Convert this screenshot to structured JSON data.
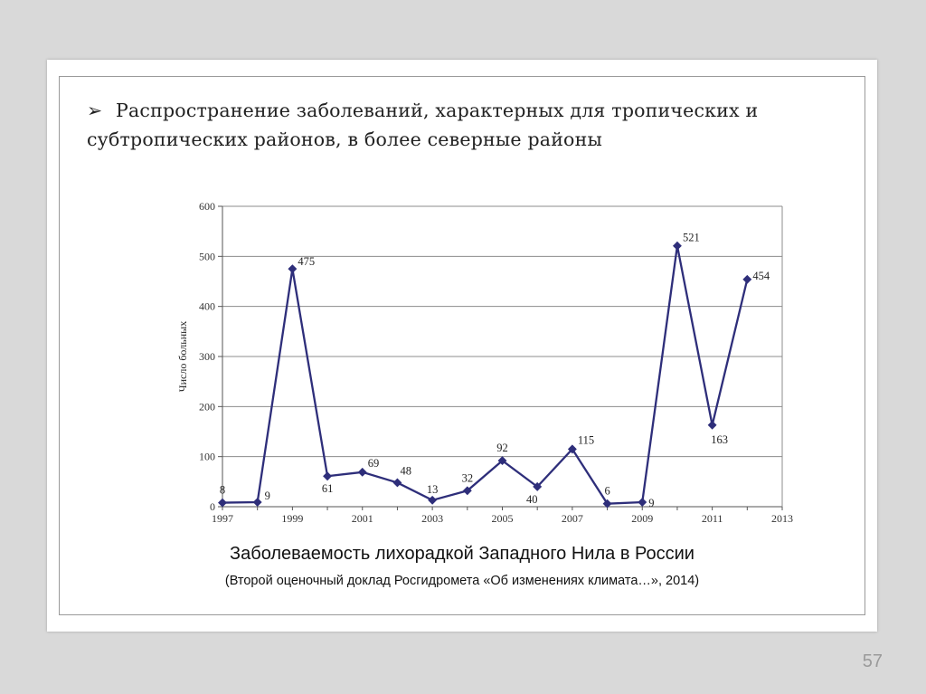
{
  "slide": {
    "bullet_marker": "➢",
    "bullet_text": "Распространение заболеваний, характерных для тропических и субтропических районов, в более северные районы",
    "caption_title": "Заболеваемость лихорадкой Западного Нила в России",
    "caption_subtitle": "(Второй оценочный доклад Росгидромета  «Об изменениях климата…», 2014)",
    "page_number": "57"
  },
  "colors": {
    "line": "#2e2e7a",
    "grid": "#8c8c8c",
    "background": "#d9d9d9"
  },
  "chart_data": {
    "type": "line",
    "ylabel": "Число больных",
    "xlabel": "",
    "x": [
      1997,
      1998,
      1999,
      2000,
      2001,
      2002,
      2003,
      2004,
      2005,
      2006,
      2007,
      2008,
      2009,
      2010,
      2011,
      2012
    ],
    "values": [
      8,
      9,
      475,
      61,
      69,
      48,
      13,
      32,
      92,
      40,
      115,
      6,
      9,
      521,
      163,
      454
    ],
    "data_labels": [
      "8",
      "9",
      "475",
      "61",
      "69",
      "48",
      "13",
      "32",
      "92",
      "40",
      "115",
      "6",
      "9",
      "521",
      "163",
      "454"
    ],
    "xlim": [
      1997,
      2013
    ],
    "ylim": [
      0,
      600
    ],
    "x_ticks": [
      1997,
      1999,
      2001,
      2003,
      2005,
      2007,
      2009,
      2011,
      2013
    ],
    "x_tick_labels": [
      "1997",
      "1999",
      "2001",
      "2003",
      "2005",
      "2007",
      "2009",
      "2011",
      "2013"
    ],
    "y_ticks": [
      0,
      100,
      200,
      300,
      400,
      500,
      600
    ],
    "y_tick_labels": [
      "0",
      "100",
      "200",
      "300",
      "400",
      "500",
      "600"
    ],
    "grid": true
  }
}
